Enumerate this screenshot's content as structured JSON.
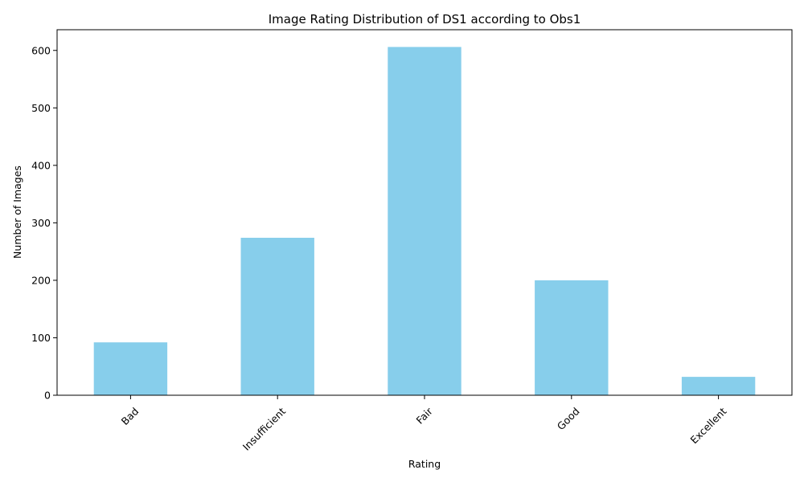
{
  "chart_data": {
    "type": "bar",
    "title": "Image Rating Distribution of DS1 according to Obs1",
    "xlabel": "Rating",
    "ylabel": "Number of Images",
    "categories": [
      "Bad",
      "Insufficient",
      "Fair",
      "Good",
      "Excellent"
    ],
    "values": [
      92,
      274,
      606,
      200,
      32
    ],
    "ylim": [
      0,
      636
    ],
    "yticks": [
      0,
      100,
      200,
      300,
      400,
      500,
      600
    ],
    "bar_color": "#87CEEB",
    "grid": false,
    "legend": "none"
  }
}
